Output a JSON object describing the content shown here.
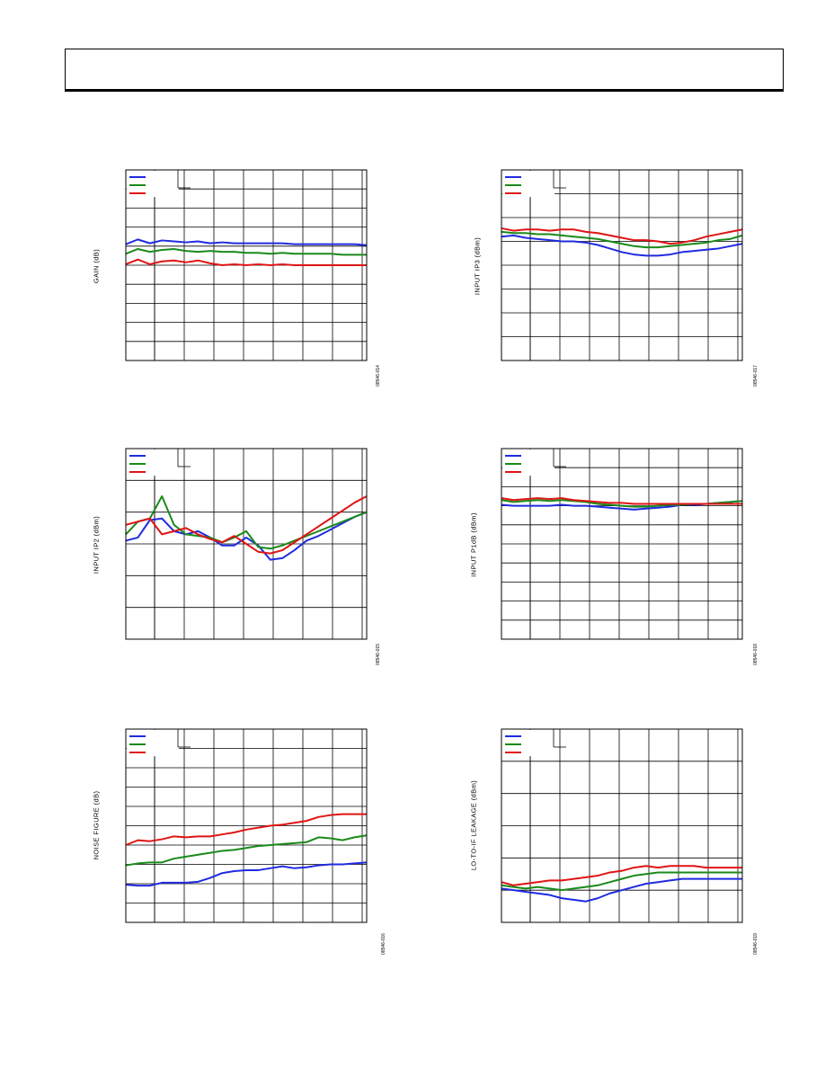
{
  "colors": {
    "blue": "#1f2be0",
    "green": "#1a8a1a",
    "red": "#e01414",
    "grid": "#000000"
  },
  "chart_data": [
    {
      "type": "line",
      "ylabel": "GAIN (dB)",
      "fig_id": "08546-014",
      "x": [
        0,
        5,
        10,
        15,
        20,
        25,
        30,
        35,
        40,
        45,
        50,
        55,
        60,
        65,
        70,
        75,
        80,
        85,
        90,
        95,
        100
      ],
      "ylim": [
        0,
        10
      ],
      "series": [
        {
          "color": "blue",
          "values": [
            6.1,
            6.35,
            6.15,
            6.3,
            6.25,
            6.2,
            6.25,
            6.15,
            6.2,
            6.15,
            6.15,
            6.15,
            6.15,
            6.15,
            6.1,
            6.1,
            6.1,
            6.1,
            6.1,
            6.1,
            6.05
          ]
        },
        {
          "color": "green",
          "values": [
            5.6,
            5.85,
            5.7,
            5.8,
            5.85,
            5.75,
            5.7,
            5.75,
            5.7,
            5.7,
            5.65,
            5.65,
            5.6,
            5.65,
            5.6,
            5.6,
            5.6,
            5.6,
            5.55,
            5.55,
            5.55
          ]
        },
        {
          "color": "red",
          "values": [
            5.05,
            5.3,
            5.05,
            5.2,
            5.25,
            5.15,
            5.25,
            5.1,
            5.0,
            5.05,
            5.0,
            5.05,
            5.0,
            5.05,
            5.0,
            5.0,
            5.0,
            5.0,
            5.0,
            5.0,
            5.0
          ]
        }
      ]
    },
    {
      "type": "line",
      "ylabel": "INPUT IP3 (dBm)",
      "fig_id": "08546-017",
      "x": [
        0,
        5,
        10,
        15,
        20,
        25,
        30,
        35,
        40,
        45,
        50,
        55,
        60,
        65,
        70,
        75,
        80,
        85,
        90,
        95,
        100
      ],
      "ylim": [
        0,
        8
      ],
      "series": [
        {
          "color": "blue",
          "values": [
            5.2,
            5.25,
            5.15,
            5.1,
            5.05,
            5.0,
            5.0,
            4.95,
            4.85,
            4.7,
            4.55,
            4.45,
            4.4,
            4.4,
            4.45,
            4.55,
            4.6,
            4.65,
            4.7,
            4.8,
            4.9
          ]
        },
        {
          "color": "green",
          "values": [
            5.4,
            5.35,
            5.35,
            5.3,
            5.3,
            5.25,
            5.2,
            5.15,
            5.1,
            5.0,
            4.9,
            4.8,
            4.75,
            4.75,
            4.8,
            4.85,
            4.9,
            4.95,
            5.05,
            5.1,
            5.25
          ]
        },
        {
          "color": "red",
          "values": [
            5.55,
            5.45,
            5.5,
            5.5,
            5.45,
            5.5,
            5.5,
            5.4,
            5.35,
            5.25,
            5.15,
            5.05,
            5.05,
            5.0,
            4.9,
            4.95,
            5.05,
            5.2,
            5.3,
            5.4,
            5.5
          ]
        }
      ]
    },
    {
      "type": "line",
      "ylabel": "INPUT IP2 (dBm)",
      "fig_id": "08546-015",
      "x": [
        0,
        5,
        10,
        15,
        20,
        25,
        30,
        35,
        40,
        45,
        50,
        55,
        60,
        65,
        70,
        75,
        80,
        85,
        90,
        95,
        100
      ],
      "ylim": [
        0,
        6
      ],
      "series": [
        {
          "color": "blue",
          "values": [
            3.1,
            3.2,
            3.75,
            3.8,
            3.4,
            3.3,
            3.4,
            3.2,
            2.95,
            2.95,
            3.2,
            2.95,
            2.5,
            2.55,
            2.8,
            3.1,
            3.25,
            3.45,
            3.65,
            3.85,
            4.0
          ]
        },
        {
          "color": "green",
          "values": [
            3.3,
            3.7,
            3.8,
            4.5,
            3.6,
            3.3,
            3.25,
            3.2,
            3.05,
            3.2,
            3.4,
            2.9,
            2.85,
            2.95,
            3.1,
            3.25,
            3.4,
            3.55,
            3.7,
            3.85,
            4.0
          ]
        },
        {
          "color": "red",
          "values": [
            3.6,
            3.7,
            3.8,
            3.3,
            3.4,
            3.5,
            3.3,
            3.15,
            3.05,
            3.25,
            3.0,
            2.75,
            2.7,
            2.8,
            3.05,
            3.3,
            3.55,
            3.8,
            4.05,
            4.3,
            4.5
          ]
        }
      ]
    },
    {
      "type": "line",
      "ylabel": "INPUT P1dB (dBm)",
      "fig_id": "08546-018",
      "x": [
        0,
        5,
        10,
        15,
        20,
        25,
        30,
        35,
        40,
        45,
        50,
        55,
        60,
        65,
        70,
        75,
        80,
        85,
        90,
        95,
        100
      ],
      "ylim": [
        0,
        10
      ],
      "series": [
        {
          "color": "blue",
          "values": [
            7.05,
            7.0,
            7.0,
            7.0,
            7.0,
            7.05,
            7.0,
            7.0,
            6.95,
            6.9,
            6.85,
            6.8,
            6.85,
            6.9,
            6.95,
            7.05,
            7.05,
            7.1,
            7.15,
            7.2,
            7.25
          ]
        },
        {
          "color": "green",
          "values": [
            7.3,
            7.2,
            7.25,
            7.3,
            7.25,
            7.3,
            7.25,
            7.2,
            7.1,
            7.05,
            7.0,
            6.95,
            6.95,
            7.0,
            7.05,
            7.05,
            7.1,
            7.1,
            7.15,
            7.2,
            7.25
          ]
        },
        {
          "color": "red",
          "values": [
            7.4,
            7.3,
            7.35,
            7.4,
            7.35,
            7.4,
            7.3,
            7.25,
            7.2,
            7.15,
            7.15,
            7.1,
            7.1,
            7.1,
            7.1,
            7.1,
            7.1,
            7.1,
            7.1,
            7.1,
            7.1
          ]
        }
      ]
    },
    {
      "type": "line",
      "ylabel": "NOISE FIGURE (dB)",
      "fig_id": "08546-016",
      "x": [
        0,
        5,
        10,
        15,
        20,
        25,
        30,
        35,
        40,
        45,
        50,
        55,
        60,
        65,
        70,
        75,
        80,
        85,
        90,
        95,
        100
      ],
      "ylim": [
        0,
        10
      ],
      "series": [
        {
          "color": "blue",
          "values": [
            1.95,
            1.9,
            1.9,
            2.05,
            2.05,
            2.05,
            2.1,
            2.3,
            2.55,
            2.65,
            2.7,
            2.7,
            2.8,
            2.9,
            2.8,
            2.85,
            2.95,
            3.0,
            3.0,
            3.05,
            3.1
          ]
        },
        {
          "color": "green",
          "values": [
            2.95,
            3.05,
            3.1,
            3.1,
            3.3,
            3.4,
            3.5,
            3.6,
            3.7,
            3.75,
            3.85,
            3.95,
            4.0,
            4.05,
            4.1,
            4.15,
            4.4,
            4.35,
            4.25,
            4.4,
            4.5
          ]
        },
        {
          "color": "red",
          "values": [
            4.0,
            4.25,
            4.2,
            4.3,
            4.45,
            4.4,
            4.45,
            4.45,
            4.55,
            4.65,
            4.8,
            4.9,
            5.0,
            5.05,
            5.15,
            5.25,
            5.45,
            5.55,
            5.6,
            5.6,
            5.6
          ]
        }
      ]
    },
    {
      "type": "line",
      "ylabel": "LO-TO-IF LEAKAGE (dBm)",
      "fig_id": "08546-019",
      "x": [
        0,
        5,
        10,
        15,
        20,
        25,
        30,
        35,
        40,
        45,
        50,
        55,
        60,
        65,
        70,
        75,
        80,
        85,
        90,
        95,
        100
      ],
      "ylim": [
        0,
        6
      ],
      "series": [
        {
          "color": "blue",
          "values": [
            1.05,
            1.0,
            0.95,
            0.9,
            0.85,
            0.75,
            0.7,
            0.65,
            0.75,
            0.9,
            1.0,
            1.1,
            1.2,
            1.25,
            1.3,
            1.35,
            1.35,
            1.35,
            1.35,
            1.35,
            1.35
          ]
        },
        {
          "color": "green",
          "values": [
            1.15,
            1.1,
            1.05,
            1.1,
            1.05,
            1.0,
            1.05,
            1.1,
            1.15,
            1.25,
            1.35,
            1.45,
            1.5,
            1.55,
            1.55,
            1.55,
            1.55,
            1.55,
            1.55,
            1.55,
            1.55
          ]
        },
        {
          "color": "red",
          "values": [
            1.25,
            1.15,
            1.2,
            1.25,
            1.3,
            1.3,
            1.35,
            1.4,
            1.45,
            1.55,
            1.6,
            1.7,
            1.75,
            1.7,
            1.75,
            1.75,
            1.75,
            1.7,
            1.7,
            1.7,
            1.7
          ]
        }
      ]
    }
  ]
}
